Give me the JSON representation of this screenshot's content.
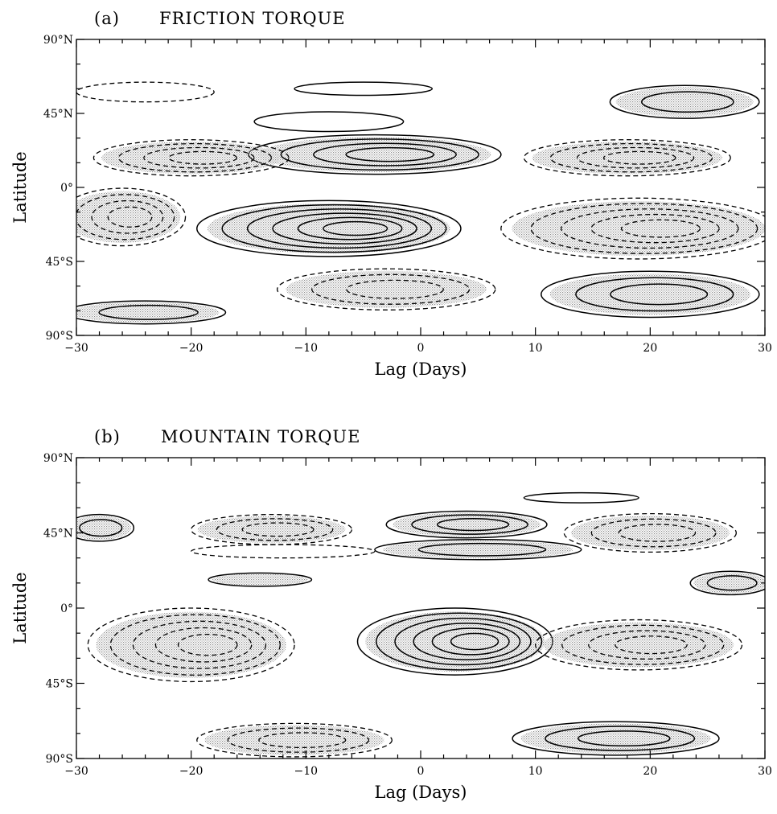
{
  "chart_data": [
    {
      "type": "contour",
      "panel_label": "(a)",
      "title": "FRICTION TORQUE",
      "xlabel": "Lag (Days)",
      "ylabel": "Latitude",
      "xlim": [
        -30,
        30
      ],
      "ylim": [
        -90,
        90
      ],
      "x_ticks": [
        -30,
        -20,
        -10,
        0,
        10,
        20,
        30
      ],
      "x_tick_labels": [
        "−30",
        "−20",
        "−10",
        "0",
        "10",
        "20",
        "30"
      ],
      "y_ticks": [
        90,
        45,
        0,
        -45,
        -90
      ],
      "y_tick_labels": [
        "90°N",
        "45°N",
        "0°",
        "45°S",
        "90°S"
      ],
      "contours": [
        {
          "sign": "positive",
          "shaded": true,
          "center": [
            -4,
            20
          ],
          "levels": 4,
          "x_extent": [
            -14,
            8
          ],
          "lat_extent": [
            8,
            32
          ]
        },
        {
          "sign": "positive",
          "shaded": true,
          "center": [
            -8,
            -25
          ],
          "levels": 6,
          "x_extent": [
            -18,
            5
          ],
          "lat_extent": [
            -42,
            -8
          ]
        },
        {
          "sign": "positive",
          "shaded": true,
          "center": [
            20,
            -65
          ],
          "levels": 3,
          "x_extent": [
            10,
            29
          ],
          "lat_extent": [
            -80,
            -52
          ]
        },
        {
          "sign": "positive",
          "shaded": true,
          "center": [
            23,
            52
          ],
          "levels": 2,
          "x_extent": [
            16,
            29
          ],
          "lat_extent": [
            42,
            62
          ]
        },
        {
          "sign": "positive",
          "shaded": false,
          "center": [
            -5,
            60
          ],
          "levels": 1,
          "x_extent": [
            -10,
            2
          ],
          "lat_extent": [
            56,
            64
          ]
        },
        {
          "sign": "positive",
          "shaded": false,
          "center": [
            -8,
            40
          ],
          "levels": 1,
          "x_extent": [
            -15,
            -2
          ],
          "lat_extent": [
            34,
            46
          ]
        },
        {
          "sign": "positive",
          "shaded": true,
          "center": [
            -24,
            -76
          ],
          "levels": 2,
          "x_extent": [
            -29,
            -15
          ],
          "lat_extent": [
            -82,
            -68
          ]
        },
        {
          "sign": "negative",
          "shaded": true,
          "center": [
            -20,
            18
          ],
          "levels": 4,
          "x_extent": [
            -30,
            -13
          ],
          "lat_extent": [
            8,
            30
          ]
        },
        {
          "sign": "negative",
          "shaded": true,
          "center": [
            18,
            18
          ],
          "levels": 4,
          "x_extent": [
            9,
            27
          ],
          "lat_extent": [
            8,
            30
          ]
        },
        {
          "sign": "negative",
          "shaded": true,
          "center": [
            -26,
            -18
          ],
          "levels": 4,
          "x_extent": [
            -30,
            -19
          ],
          "lat_extent": [
            -40,
            -5
          ]
        },
        {
          "sign": "negative",
          "shaded": true,
          "center": [
            19,
            -25
          ],
          "levels": 5,
          "x_extent": [
            6,
            30
          ],
          "lat_extent": [
            -45,
            -8
          ]
        },
        {
          "sign": "negative",
          "shaded": true,
          "center": [
            -3,
            -62
          ],
          "levels": 3,
          "x_extent": [
            -12,
            7
          ],
          "lat_extent": [
            -75,
            -50
          ]
        },
        {
          "sign": "negative",
          "shaded": false,
          "center": [
            -24,
            58
          ],
          "levels": 1,
          "x_extent": [
            -30,
            -18
          ],
          "lat_extent": [
            52,
            64
          ]
        }
      ]
    },
    {
      "type": "contour",
      "panel_label": "(b)",
      "title": "MOUNTAIN TORQUE",
      "xlabel": "Lag (Days)",
      "ylabel": "Latitude",
      "xlim": [
        -30,
        30
      ],
      "ylim": [
        -90,
        90
      ],
      "x_ticks": [
        -30,
        -20,
        -10,
        0,
        10,
        20,
        30
      ],
      "x_tick_labels": [
        "−30",
        "−20",
        "−10",
        "0",
        "10",
        "20",
        "30"
      ],
      "y_ticks": [
        90,
        45,
        0,
        -45,
        -90
      ],
      "y_tick_labels": [
        "90°N",
        "45°N",
        "0°",
        "45°S",
        "90°S"
      ],
      "contours": [
        {
          "sign": "positive",
          "shaded": true,
          "center": [
            3,
            -20
          ],
          "levels": 6,
          "x_extent": [
            -5,
            12
          ],
          "lat_extent": [
            -42,
            -2
          ]
        },
        {
          "sign": "positive",
          "shaded": true,
          "center": [
            4,
            50
          ],
          "levels": 3,
          "x_extent": [
            -2,
            12
          ],
          "lat_extent": [
            42,
            58
          ]
        },
        {
          "sign": "positive",
          "shaded": true,
          "center": [
            5,
            35
          ],
          "levels": 2,
          "x_extent": [
            -4,
            14
          ],
          "lat_extent": [
            30,
            42
          ]
        },
        {
          "sign": "positive",
          "shaded": true,
          "center": [
            -14,
            17
          ],
          "levels": 1,
          "x_extent": [
            -18,
            -9
          ],
          "lat_extent": [
            13,
            21
          ]
        },
        {
          "sign": "positive",
          "shaded": true,
          "center": [
            17,
            -78
          ],
          "levels": 3,
          "x_extent": [
            9,
            27
          ],
          "lat_extent": [
            -88,
            -68
          ]
        },
        {
          "sign": "positive",
          "shaded": true,
          "center": [
            27,
            15
          ],
          "levels": 2,
          "x_extent": [
            23,
            30
          ],
          "lat_extent": [
            8,
            22
          ]
        },
        {
          "sign": "positive",
          "shaded": true,
          "center": [
            -28,
            48
          ],
          "levels": 2,
          "x_extent": [
            -30,
            -24
          ],
          "lat_extent": [
            40,
            56
          ]
        },
        {
          "sign": "positive",
          "shaded": false,
          "center": [
            14,
            66
          ],
          "levels": 1,
          "x_extent": [
            10,
            20
          ],
          "lat_extent": [
            63,
            69
          ]
        },
        {
          "sign": "negative",
          "shaded": true,
          "center": [
            -20,
            -22
          ],
          "levels": 5,
          "x_extent": [
            -29,
            -11
          ],
          "lat_extent": [
            -47,
            -3
          ]
        },
        {
          "sign": "negative",
          "shaded": true,
          "center": [
            -13,
            47
          ],
          "levels": 3,
          "x_extent": [
            -20,
            -6
          ],
          "lat_extent": [
            38,
            56
          ]
        },
        {
          "sign": "negative",
          "shaded": true,
          "center": [
            19,
            -22
          ],
          "levels": 4,
          "x_extent": [
            11,
            29
          ],
          "lat_extent": [
            -38,
            -8
          ]
        },
        {
          "sign": "negative",
          "shaded": true,
          "center": [
            20,
            45
          ],
          "levels": 3,
          "x_extent": [
            15,
            30
          ],
          "lat_extent": [
            35,
            58
          ]
        },
        {
          "sign": "negative",
          "shaded": true,
          "center": [
            -11,
            -79
          ],
          "levels": 3,
          "x_extent": [
            -19,
            -2
          ],
          "lat_extent": [
            -88,
            -68
          ]
        },
        {
          "sign": "negative",
          "shaded": false,
          "center": [
            -12,
            34
          ],
          "levels": 1,
          "x_extent": [
            -20,
            -4
          ],
          "lat_extent": [
            30,
            38
          ]
        }
      ]
    }
  ]
}
